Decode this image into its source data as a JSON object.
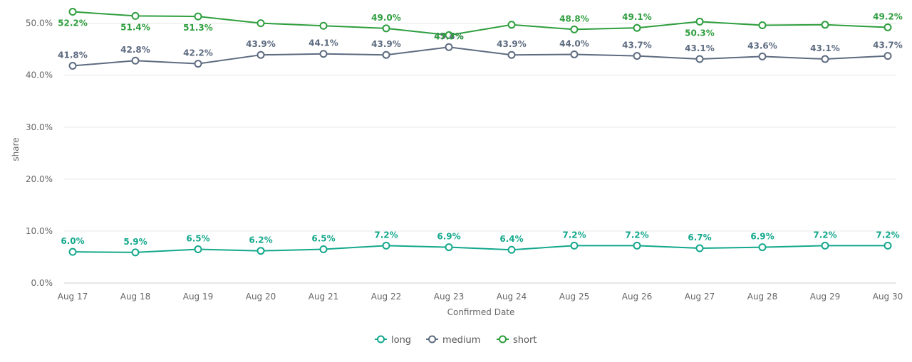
{
  "chart_data": {
    "type": "line",
    "xlabel": "Confirmed Date",
    "ylabel": "share",
    "ylim": [
      0,
      52
    ],
    "y_ticks": [
      "0.0%",
      "10.0%",
      "20.0%",
      "30.0%",
      "40.0%",
      "50.0%"
    ],
    "y_tick_values": [
      0,
      10,
      20,
      30,
      40,
      50
    ],
    "categories": [
      "Aug 17",
      "Aug 18",
      "Aug 19",
      "Aug 20",
      "Aug 21",
      "Aug 22",
      "Aug 23",
      "Aug 24",
      "Aug 25",
      "Aug 26",
      "Aug 27",
      "Aug 28",
      "Aug 29",
      "Aug 30"
    ],
    "grid": true,
    "legend_position": "bottom-center",
    "series": [
      {
        "name": "long",
        "color": "#14a88c",
        "values": [
          6.0,
          5.9,
          6.5,
          6.2,
          6.5,
          7.2,
          6.9,
          6.4,
          7.2,
          7.2,
          6.7,
          6.9,
          7.2,
          7.2
        ],
        "labels": [
          "6.0%",
          "5.9%",
          "6.5%",
          "6.2%",
          "6.5%",
          "7.2%",
          "6.9%",
          "6.4%",
          "7.2%",
          "7.2%",
          "6.7%",
          "6.9%",
          "7.2%",
          "7.2%"
        ]
      },
      {
        "name": "medium",
        "color": "#5d6b80",
        "values": [
          41.8,
          42.8,
          42.2,
          43.9,
          44.1,
          43.9,
          45.4,
          43.9,
          44.0,
          43.7,
          43.1,
          43.6,
          43.1,
          43.7
        ],
        "labels": [
          "41.8%",
          "42.8%",
          "42.2%",
          "43.9%",
          "44.1%",
          "43.9%",
          "45.4%",
          "43.9%",
          "44.0%",
          "43.7%",
          "43.1%",
          "43.6%",
          "43.1%",
          "43.7%"
        ]
      },
      {
        "name": "short",
        "color": "#2e9e3e",
        "values": [
          52.2,
          51.4,
          51.3,
          50.0,
          49.5,
          49.0,
          47.7,
          49.7,
          48.8,
          49.1,
          50.3,
          49.6,
          49.7,
          49.2
        ],
        "labels": [
          "52.2%",
          "51.4%",
          "51.3%",
          "",
          "",
          "49.0%",
          "47.7%",
          "",
          "48.8%",
          "49.1%",
          "50.3%",
          "",
          "",
          "49.2%"
        ]
      }
    ]
  }
}
